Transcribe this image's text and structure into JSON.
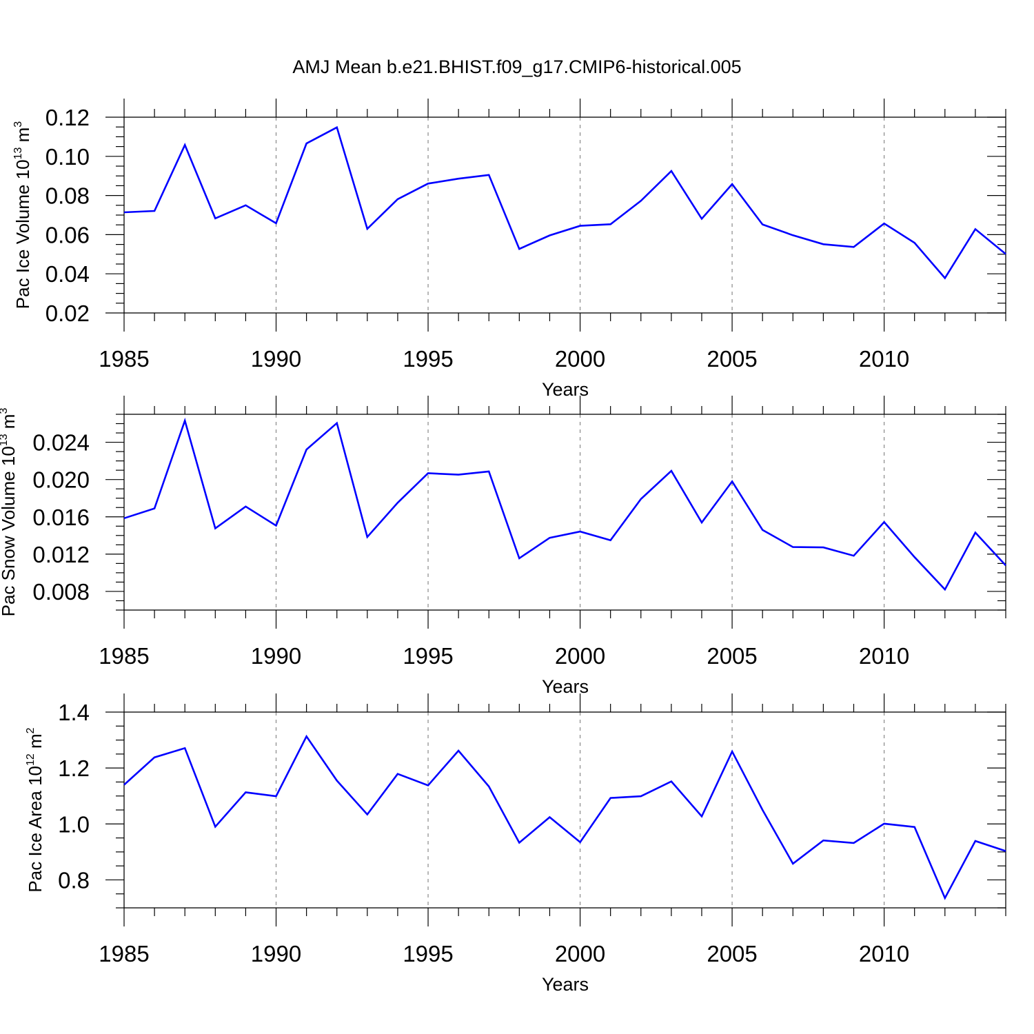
{
  "chart_data": {
    "type": "line",
    "title": "AMJ Mean b.e21.BHIST.f09_g17.CMIP6-historical.005",
    "line_color": "#0000ff",
    "x": [
      1985,
      1986,
      1987,
      1988,
      1989,
      1990,
      1991,
      1992,
      1993,
      1994,
      1995,
      1996,
      1997,
      1998,
      1999,
      2000,
      2001,
      2002,
      2003,
      2004,
      2005,
      2006,
      2007,
      2008,
      2009,
      2010,
      2011,
      2012,
      2013,
      2014
    ],
    "xlim": [
      1985,
      2014
    ],
    "xticks": [
      1985,
      1990,
      1995,
      2000,
      2005,
      2010
    ],
    "xtick_labels": [
      "1985",
      "1990",
      "1995",
      "2000",
      "2005",
      "2010"
    ],
    "panels": [
      {
        "id": "ice-volume",
        "ylabel": "Pac Ice Volume 10",
        "yexp": "13",
        "yunit": "m",
        "yunit_exp": "3",
        "xlabel": "Years",
        "ylim": [
          0.02,
          0.12
        ],
        "yticks": [
          0.02,
          0.04,
          0.06,
          0.08,
          0.1,
          0.12
        ],
        "ytick_labels": [
          "0.02",
          "0.04",
          "0.06",
          "0.08",
          "0.10",
          "0.12"
        ],
        "values": [
          0.0714,
          0.0721,
          0.1058,
          0.0683,
          0.075,
          0.0658,
          0.1066,
          0.1148,
          0.063,
          0.0781,
          0.0861,
          0.0886,
          0.0905,
          0.0527,
          0.0596,
          0.0645,
          0.0653,
          0.0773,
          0.0925,
          0.0681,
          0.0858,
          0.0652,
          0.0597,
          0.0551,
          0.0537,
          0.0657,
          0.0558,
          0.0378,
          0.0628,
          0.0501
        ]
      },
      {
        "id": "snow-volume",
        "ylabel": "Pac Snow Volume 10",
        "yexp": "13",
        "yunit": "m",
        "yunit_exp": "3",
        "xlabel": "Years",
        "ylim": [
          0.006,
          0.027
        ],
        "yticks": [
          0.008,
          0.012,
          0.016,
          0.02,
          0.024
        ],
        "ytick_labels": [
          "0.008",
          "0.012",
          "0.016",
          "0.020",
          "0.024"
        ],
        "values": [
          0.01585,
          0.0169,
          0.02632,
          0.01476,
          0.01711,
          0.01506,
          0.02322,
          0.02605,
          0.01384,
          0.01751,
          0.02068,
          0.02052,
          0.02087,
          0.01155,
          0.01375,
          0.01442,
          0.01349,
          0.01791,
          0.02093,
          0.01539,
          0.0198,
          0.01459,
          0.01276,
          0.01272,
          0.01183,
          0.01544,
          0.01168,
          0.0082,
          0.01431,
          0.01079
        ]
      },
      {
        "id": "ice-area",
        "ylabel": "Pac Ice Area 10",
        "yexp": "12",
        "yunit": "m",
        "yunit_exp": "2",
        "xlabel": "Years",
        "ylim": [
          0.7,
          1.4
        ],
        "yticks": [
          0.8,
          1.0,
          1.2,
          1.4
        ],
        "ytick_labels": [
          "0.8",
          "1.0",
          "1.2",
          "1.4"
        ],
        "values": [
          1.14,
          1.238,
          1.271,
          0.99,
          1.113,
          1.099,
          1.313,
          1.155,
          1.034,
          1.179,
          1.138,
          1.262,
          1.134,
          0.933,
          1.024,
          0.935,
          1.093,
          1.099,
          1.152,
          1.027,
          1.259,
          1.05,
          0.858,
          0.941,
          0.932,
          1.001,
          0.989,
          0.735,
          0.939,
          0.903
        ]
      }
    ]
  }
}
